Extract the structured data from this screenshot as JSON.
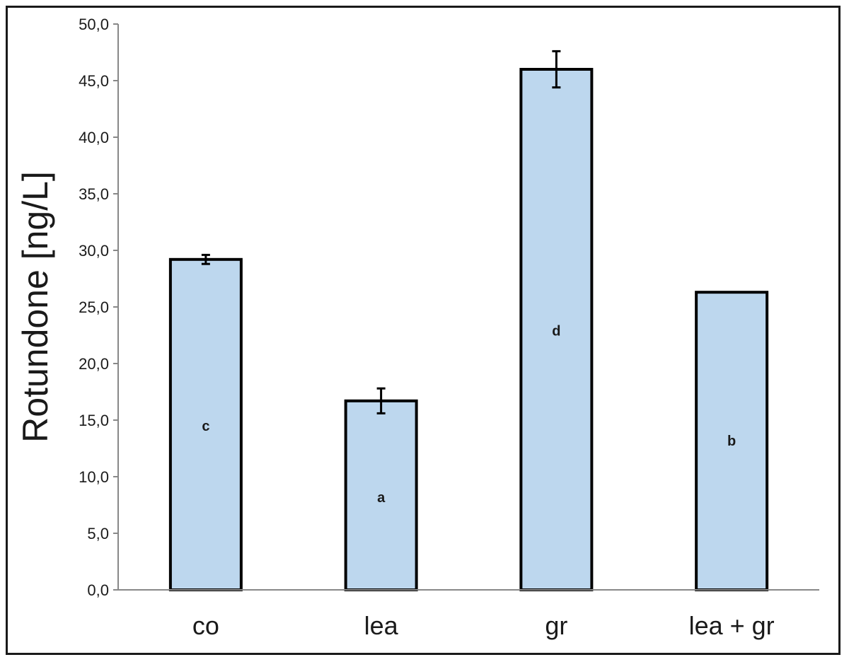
{
  "chart_data": {
    "type": "bar",
    "title": "",
    "xlabel": "",
    "ylabel": "Rotundone [ng/L]",
    "ylim": [
      0,
      50
    ],
    "ytick_step": 5,
    "ytick_labels": [
      "0,0",
      "5,0",
      "10,0",
      "15,0",
      "20,0",
      "25,0",
      "30,0",
      "35,0",
      "40,0",
      "45,0",
      "50,0"
    ],
    "categories": [
      "co",
      "lea",
      "gr",
      "lea + gr"
    ],
    "values": [
      29.2,
      16.7,
      46.0,
      26.3
    ],
    "errors": [
      0.4,
      1.1,
      1.6,
      0.05
    ],
    "significance_labels": [
      "c",
      "a",
      "d",
      "b"
    ],
    "significance_label_positions": [
      14.5,
      8.2,
      22.9,
      13.2
    ],
    "grid": false,
    "legend": "none",
    "bar_color": "#bdd7ee",
    "bar_edge_color": "#000000"
  }
}
